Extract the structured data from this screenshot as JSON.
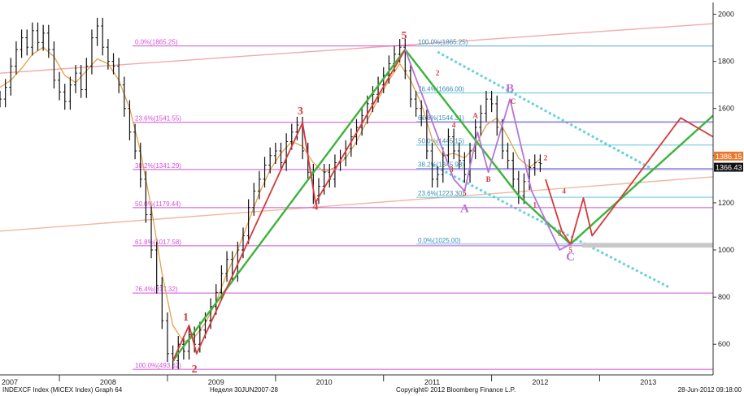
{
  "chart_data": {
    "type": "line",
    "title": "",
    "xlabel": "",
    "ylabel": "",
    "ylim": [
      470,
      2050
    ],
    "xlim": [
      2007.0,
      2013.6
    ],
    "y_axis_position": "right",
    "grid": false,
    "y_ticks": [
      600,
      800,
      1000,
      1200,
      1400,
      1600,
      1800,
      2000
    ],
    "x_year_labels": [
      {
        "x": 2007.0,
        "label": "2007"
      },
      {
        "x": 2008.0,
        "label": "2008"
      },
      {
        "x": 2009.0,
        "label": "2009"
      },
      {
        "x": 2010.0,
        "label": "2010"
      },
      {
        "x": 2011.0,
        "label": "2011"
      },
      {
        "x": 2012.0,
        "label": "2012"
      },
      {
        "x": 2013.0,
        "label": "2013"
      }
    ],
    "x_dividers": [
      2007.55,
      2008.55,
      2009.55,
      2010.55,
      2011.55,
      2012.55
    ],
    "last_price_labels": [
      {
        "value": 1386.15,
        "text": "1386.15",
        "bg": "#e8782e",
        "fg": "#ffffff"
      },
      {
        "value": 1366.43,
        "text": "1366.43",
        "bg": "#111111",
        "fg": "#ffffff"
      }
    ],
    "price_series": {
      "name": "",
      "color": "#111111",
      "points": [
        [
          2007.0,
          1640
        ],
        [
          2007.05,
          1690
        ],
        [
          2007.1,
          1780
        ],
        [
          2007.15,
          1850
        ],
        [
          2007.2,
          1900
        ],
        [
          2007.25,
          1860
        ],
        [
          2007.3,
          1930
        ],
        [
          2007.35,
          1880
        ],
        [
          2007.4,
          1920
        ],
        [
          2007.45,
          1850
        ],
        [
          2007.5,
          1720
        ],
        [
          2007.55,
          1670
        ],
        [
          2007.6,
          1630
        ],
        [
          2007.65,
          1700
        ],
        [
          2007.7,
          1750
        ],
        [
          2007.75,
          1680
        ],
        [
          2007.8,
          1780
        ],
        [
          2007.85,
          1900
        ],
        [
          2007.9,
          1950
        ],
        [
          2007.95,
          1860
        ],
        [
          2008.0,
          1800
        ],
        [
          2008.05,
          1780
        ],
        [
          2008.1,
          1700
        ],
        [
          2008.15,
          1600
        ],
        [
          2008.2,
          1500
        ],
        [
          2008.25,
          1420
        ],
        [
          2008.3,
          1300
        ],
        [
          2008.35,
          1150
        ],
        [
          2008.4,
          1000
        ],
        [
          2008.45,
          850
        ],
        [
          2008.5,
          700
        ],
        [
          2008.55,
          560
        ],
        [
          2008.6,
          530
        ],
        [
          2008.65,
          600
        ],
        [
          2008.7,
          570
        ],
        [
          2008.75,
          640
        ],
        [
          2008.8,
          600
        ],
        [
          2008.85,
          660
        ],
        [
          2008.9,
          700
        ],
        [
          2008.95,
          760
        ],
        [
          2009.0,
          820
        ],
        [
          2009.05,
          900
        ],
        [
          2009.1,
          960
        ],
        [
          2009.15,
          900
        ],
        [
          2009.2,
          1000
        ],
        [
          2009.25,
          1060
        ],
        [
          2009.3,
          1180
        ],
        [
          2009.35,
          1250
        ],
        [
          2009.4,
          1300
        ],
        [
          2009.45,
          1360
        ],
        [
          2009.5,
          1400
        ],
        [
          2009.55,
          1420
        ],
        [
          2009.6,
          1370
        ],
        [
          2009.65,
          1460
        ],
        [
          2009.7,
          1500
        ],
        [
          2009.75,
          1530
        ],
        [
          2009.8,
          1420
        ],
        [
          2009.85,
          1330
        ],
        [
          2009.9,
          1230
        ],
        [
          2009.95,
          1270
        ],
        [
          2010.0,
          1330
        ],
        [
          2010.05,
          1300
        ],
        [
          2010.1,
          1370
        ],
        [
          2010.15,
          1390
        ],
        [
          2010.2,
          1430
        ],
        [
          2010.25,
          1480
        ],
        [
          2010.3,
          1520
        ],
        [
          2010.35,
          1570
        ],
        [
          2010.4,
          1620
        ],
        [
          2010.45,
          1660
        ],
        [
          2010.5,
          1700
        ],
        [
          2010.55,
          1740
        ],
        [
          2010.6,
          1790
        ],
        [
          2010.65,
          1830
        ],
        [
          2010.7,
          1860
        ],
        [
          2010.75,
          1760
        ],
        [
          2010.8,
          1640
        ],
        [
          2010.85,
          1600
        ],
        [
          2010.9,
          1560
        ],
        [
          2010.95,
          1420
        ],
        [
          2011.0,
          1300
        ],
        [
          2011.05,
          1320
        ],
        [
          2011.1,
          1400
        ],
        [
          2011.15,
          1480
        ],
        [
          2011.2,
          1420
        ],
        [
          2011.25,
          1380
        ],
        [
          2011.3,
          1320
        ],
        [
          2011.35,
          1420
        ],
        [
          2011.4,
          1520
        ],
        [
          2011.45,
          1580
        ],
        [
          2011.5,
          1640
        ],
        [
          2011.55,
          1620
        ],
        [
          2011.6,
          1520
        ],
        [
          2011.65,
          1420
        ],
        [
          2011.7,
          1380
        ],
        [
          2011.75,
          1300
        ],
        [
          2011.8,
          1230
        ],
        [
          2011.85,
          1290
        ],
        [
          2011.9,
          1350
        ],
        [
          2011.95,
          1370
        ],
        [
          2012.0,
          1366
        ]
      ]
    },
    "ma_series": {
      "name": "",
      "color": "#e2a14a",
      "points": [
        [
          2007.0,
          1690
        ],
        [
          2007.1,
          1720
        ],
        [
          2007.2,
          1770
        ],
        [
          2007.3,
          1830
        ],
        [
          2007.4,
          1860
        ],
        [
          2007.5,
          1820
        ],
        [
          2007.6,
          1740
        ],
        [
          2007.7,
          1710
        ],
        [
          2007.8,
          1760
        ],
        [
          2007.9,
          1810
        ],
        [
          2008.0,
          1790
        ],
        [
          2008.1,
          1720
        ],
        [
          2008.2,
          1600
        ],
        [
          2008.3,
          1420
        ],
        [
          2008.4,
          1180
        ],
        [
          2008.5,
          900
        ],
        [
          2008.6,
          680
        ],
        [
          2008.7,
          610
        ],
        [
          2008.8,
          630
        ],
        [
          2008.9,
          690
        ],
        [
          2009.0,
          780
        ],
        [
          2009.1,
          900
        ],
        [
          2009.2,
          1000
        ],
        [
          2009.3,
          1120
        ],
        [
          2009.4,
          1240
        ],
        [
          2009.5,
          1340
        ],
        [
          2009.6,
          1410
        ],
        [
          2009.7,
          1460
        ],
        [
          2009.8,
          1440
        ],
        [
          2009.9,
          1370
        ],
        [
          2010.0,
          1330
        ],
        [
          2010.1,
          1350
        ],
        [
          2010.2,
          1390
        ],
        [
          2010.3,
          1460
        ],
        [
          2010.4,
          1550
        ],
        [
          2010.5,
          1640
        ],
        [
          2010.6,
          1720
        ],
        [
          2010.7,
          1790
        ],
        [
          2010.8,
          1720
        ],
        [
          2010.9,
          1620
        ],
        [
          2011.0,
          1470
        ],
        [
          2011.1,
          1400
        ],
        [
          2011.2,
          1410
        ],
        [
          2011.3,
          1390
        ],
        [
          2011.4,
          1440
        ],
        [
          2011.5,
          1530
        ],
        [
          2011.6,
          1560
        ],
        [
          2011.7,
          1480
        ],
        [
          2011.8,
          1390
        ],
        [
          2011.9,
          1350
        ],
        [
          2012.0,
          1386
        ]
      ]
    },
    "fib_levels_major": [
      {
        "value": 493.62,
        "label": "100.0%(493.62)"
      },
      {
        "value": 817.32,
        "label": "76.4%(817.32)"
      },
      {
        "value": 1017.58,
        "label": "61.8%(1017.58)"
      },
      {
        "value": 1179.44,
        "label": "50.0%(1179.44)"
      },
      {
        "value": 1341.29,
        "label": "38.2%(1341.29)"
      },
      {
        "value": 1541.55,
        "label": "23.6%(1541.55)"
      },
      {
        "value": 1865.25,
        "label": "0.0%(1865.25)"
      }
    ],
    "fib_levels_minor": [
      {
        "value": 1025.0,
        "label": "0.0%(1025.00)"
      },
      {
        "value": 1223.3,
        "label": "23.6%(1223.30)"
      },
      {
        "value": 1345.98,
        "label": "38.2%(1345.98)"
      },
      {
        "value": 1445.15,
        "label": "50.0%(1445.15)"
      },
      {
        "value": 1544.31,
        "label": "61.8%(1544.31)"
      },
      {
        "value": 1666.0,
        "label": "76.4%(1666.00)"
      },
      {
        "value": 1865.25,
        "label": "100.0%(1865.25)"
      }
    ],
    "trend_lines": [
      {
        "name": "pink-upper",
        "color": "#f2aaaa",
        "from": [
          2007.0,
          1750
        ],
        "to": [
          2013.6,
          1960
        ]
      },
      {
        "name": "salmon-lower",
        "color": "#f0b8a0",
        "from": [
          2007.0,
          1080
        ],
        "to": [
          2013.6,
          1310
        ]
      },
      {
        "name": "cyan-channel-top",
        "color": "#66d0dd",
        "from": [
          2011.05,
          1840
        ],
        "to": [
          2013.05,
          1340
        ],
        "dashed": true
      },
      {
        "name": "cyan-channel-bottom",
        "color": "#66d0dd",
        "from": [
          2011.0,
          1360
        ],
        "to": [
          2013.2,
          840
        ],
        "dashed": true
      }
    ],
    "wave_paths": [
      {
        "name": "green-primary",
        "color": "#3cb33c",
        "points": [
          [
            2008.6,
            530
          ],
          [
            2010.75,
            1850
          ],
          [
            2011.8,
            1230
          ],
          [
            2012.28,
            1025
          ],
          [
            2013.6,
            1570
          ]
        ]
      },
      {
        "name": "red-impulse",
        "color": "#d63a3a",
        "points": [
          [
            2008.6,
            530
          ],
          [
            2008.75,
            680
          ],
          [
            2008.82,
            560
          ],
          [
            2009.8,
            1540
          ],
          [
            2009.92,
            1200
          ],
          [
            2010.75,
            1850
          ]
        ]
      },
      {
        "name": "red-projection",
        "color": "#d63a3a",
        "points": [
          [
            2012.05,
            1300
          ],
          [
            2012.2,
            1080
          ],
          [
            2012.28,
            1025
          ],
          [
            2012.4,
            1220
          ],
          [
            2012.48,
            1060
          ],
          [
            2013.3,
            1560
          ],
          [
            2013.6,
            1480
          ]
        ]
      },
      {
        "name": "purple-correction",
        "color": "#b574d6",
        "points": [
          [
            2010.75,
            1850
          ],
          [
            2011.2,
            1300
          ],
          [
            2011.3,
            1250
          ],
          [
            2011.42,
            1500
          ],
          [
            2011.52,
            1330
          ],
          [
            2011.72,
            1640
          ],
          [
            2011.92,
            1250
          ],
          [
            2012.18,
            1000
          ],
          [
            2012.28,
            1025
          ]
        ]
      }
    ],
    "wave_labels": [
      {
        "text": "1",
        "x": 2008.72,
        "y": 700,
        "color": "#d63a3a",
        "size": 14
      },
      {
        "text": "2",
        "x": 2008.8,
        "y": 480,
        "color": "#d63a3a",
        "size": 14
      },
      {
        "text": "3",
        "x": 2009.78,
        "y": 1575,
        "color": "#d63a3a",
        "size": 14
      },
      {
        "text": "4",
        "x": 2009.92,
        "y": 1170,
        "color": "#d63a3a",
        "size": 14
      },
      {
        "text": "5",
        "x": 2010.74,
        "y": 1895,
        "color": "#d63a3a",
        "size": 14
      },
      {
        "text": "A",
        "x": 2011.3,
        "y": 1160,
        "color": "#b574d6",
        "size": 15
      },
      {
        "text": "B",
        "x": 2011.72,
        "y": 1670,
        "color": "#b574d6",
        "size": 15
      },
      {
        "text": "C",
        "x": 2012.28,
        "y": 955,
        "color": "#b574d6",
        "size": 15
      },
      {
        "text": "2",
        "x": 2011.05,
        "y": 1740,
        "color": "#d63a3a",
        "size": 9
      },
      {
        "text": "4",
        "x": 2011.2,
        "y": 1520,
        "color": "#d63a3a",
        "size": 9
      },
      {
        "text": "A",
        "x": 2011.4,
        "y": 1560,
        "color": "#d63a3a",
        "size": 9
      },
      {
        "text": "3",
        "x": 2011.18,
        "y": 1330,
        "color": "#d63a3a",
        "size": 9
      },
      {
        "text": "5",
        "x": 2011.3,
        "y": 1230,
        "color": "#d63a3a",
        "size": 9
      },
      {
        "text": "B",
        "x": 2011.52,
        "y": 1290,
        "color": "#d63a3a",
        "size": 9
      },
      {
        "text": "C",
        "x": 2011.75,
        "y": 1620,
        "color": "#d63a3a",
        "size": 9
      },
      {
        "text": "2",
        "x": 2012.05,
        "y": 1380,
        "color": "#d63a3a",
        "size": 9
      },
      {
        "text": "4",
        "x": 2012.22,
        "y": 1240,
        "color": "#d63a3a",
        "size": 9
      },
      {
        "text": "1",
        "x": 2011.95,
        "y": 1180,
        "color": "#d63a3a",
        "size": 9
      },
      {
        "text": "3",
        "x": 2012.18,
        "y": 1060,
        "color": "#d63a3a",
        "size": 9
      },
      {
        "text": "5",
        "x": 2012.28,
        "y": 990,
        "color": "#d63a3a",
        "size": 9
      }
    ]
  },
  "footer": {
    "left": "INDEXCF Index (MICEX Index) Graph 64",
    "period": "Неделя 30JUN2007-28",
    "copyright": "Copyright© 2012 Bloomberg Finance L.P.",
    "timestamp": "28-Jun-2012 09:18:00"
  },
  "colors": {
    "fib": "#d24fd8",
    "fib_minor": "#5fc6e0",
    "axis": "#333333"
  }
}
